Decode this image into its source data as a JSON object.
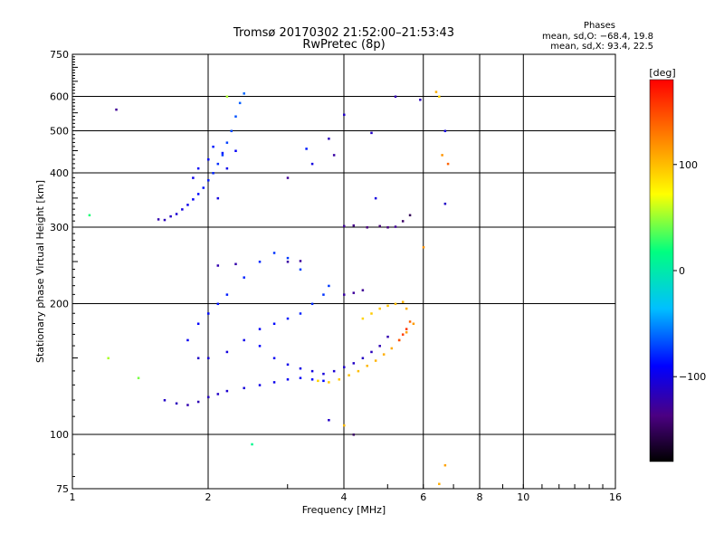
{
  "header": {
    "title_line1": "Tromsø 20170302 21:52:00–21:53:43",
    "title_line2": "RwPretec (8p)",
    "info_title": "Phases",
    "info_line1": "mean, sd,O: −68.4, 19.8",
    "info_line2": "mean, sd,X:  93.4, 22.5"
  },
  "chart_data": {
    "type": "scatter",
    "xlabel": "Frequency [MHz]",
    "ylabel": "Stationary phase Virtual Height [km]",
    "x_scale": "log",
    "y_scale": "log",
    "xlim": [
      1,
      16
    ],
    "ylim": [
      75,
      750
    ],
    "x_ticks": [
      1,
      2,
      4,
      6,
      8,
      10,
      16
    ],
    "x_tick_labels": [
      "1",
      "2",
      "4",
      "6",
      "8",
      "10",
      "16"
    ],
    "y_ticks": [
      75,
      100,
      200,
      300,
      400,
      500,
      600,
      750
    ],
    "y_tick_labels": [
      "75",
      "100",
      "200",
      "300",
      "400",
      "500",
      "600",
      "750"
    ],
    "grid": true,
    "colorbar": {
      "label": "[deg]",
      "range": [
        -180,
        180
      ],
      "ticks": [
        100,
        0,
        -100
      ],
      "tick_labels": [
        "100",
        "0",
        "−100"
      ],
      "colors": [
        "#000000",
        "#4b0082",
        "#0000ff",
        "#00bfff",
        "#00ff80",
        "#ffff00",
        "#ff8000",
        "#ff0000"
      ]
    },
    "series": [
      {
        "values": [
          [
            1.55,
            313,
            -110
          ],
          [
            1.6,
            312,
            -105
          ],
          [
            1.65,
            318,
            -100
          ],
          [
            1.7,
            322,
            -95
          ],
          [
            1.75,
            330,
            -90
          ],
          [
            1.8,
            338,
            -85
          ],
          [
            1.85,
            348,
            -80
          ],
          [
            1.9,
            358,
            -75
          ],
          [
            1.95,
            370,
            -72
          ],
          [
            2.0,
            385,
            -70
          ],
          [
            2.05,
            400,
            -68
          ],
          [
            2.1,
            420,
            -65
          ],
          [
            2.15,
            440,
            -62
          ],
          [
            2.2,
            470,
            -60
          ],
          [
            2.25,
            500,
            -58
          ],
          [
            2.3,
            540,
            -55
          ],
          [
            2.35,
            580,
            -52
          ],
          [
            2.4,
            610,
            -50
          ],
          [
            1.85,
            390,
            -85
          ],
          [
            1.9,
            410,
            -80
          ],
          [
            2.0,
            430,
            -75
          ],
          [
            2.05,
            460,
            -70
          ],
          [
            2.1,
            350,
            -90
          ],
          [
            2.2,
            410,
            -85
          ],
          [
            2.3,
            450,
            -80
          ],
          [
            1.6,
            120,
            -100
          ],
          [
            1.7,
            118,
            -105
          ],
          [
            1.8,
            117,
            -110
          ],
          [
            1.9,
            119,
            -108
          ],
          [
            2.0,
            122,
            -104
          ],
          [
            2.1,
            124,
            -100
          ],
          [
            2.2,
            126,
            -96
          ],
          [
            2.4,
            128,
            -92
          ],
          [
            2.6,
            130,
            -88
          ],
          [
            2.8,
            132,
            -85
          ],
          [
            3.0,
            134,
            -82
          ],
          [
            3.2,
            135,
            -80
          ],
          [
            3.4,
            134,
            -78
          ],
          [
            3.6,
            133,
            -76
          ],
          [
            2.0,
            150,
            -95
          ],
          [
            2.2,
            155,
            -90
          ],
          [
            2.4,
            165,
            -85
          ],
          [
            2.6,
            175,
            -80
          ],
          [
            2.8,
            180,
            -75
          ],
          [
            3.0,
            185,
            -70
          ],
          [
            3.2,
            190,
            -68
          ],
          [
            3.4,
            200,
            -66
          ],
          [
            3.6,
            210,
            -64
          ],
          [
            3.7,
            220,
            -62
          ],
          [
            2.6,
            160,
            -78
          ],
          [
            2.8,
            150,
            -82
          ],
          [
            3.0,
            145,
            -85
          ],
          [
            3.2,
            142,
            -88
          ],
          [
            3.4,
            140,
            -90
          ],
          [
            3.6,
            138,
            -92
          ],
          [
            3.8,
            140,
            -95
          ],
          [
            4.0,
            143,
            -98
          ],
          [
            4.2,
            146,
            -100
          ],
          [
            4.4,
            150,
            -102
          ],
          [
            4.6,
            155,
            -105
          ],
          [
            4.8,
            160,
            -108
          ],
          [
            5.0,
            168,
            -110
          ],
          [
            1.8,
            165,
            -82
          ],
          [
            1.9,
            180,
            -78
          ],
          [
            2.0,
            190,
            -74
          ],
          [
            2.1,
            200,
            -72
          ],
          [
            2.2,
            210,
            -70
          ],
          [
            2.4,
            230,
            -68
          ],
          [
            2.6,
            250,
            -66
          ],
          [
            2.8,
            262,
            -64
          ],
          [
            3.0,
            255,
            -62
          ],
          [
            3.2,
            240,
            -60
          ],
          [
            2.1,
            245,
            -110
          ],
          [
            2.3,
            247,
            -112
          ],
          [
            3.0,
            250,
            -115
          ],
          [
            3.2,
            251,
            -118
          ],
          [
            3.5,
            133,
            95
          ],
          [
            3.7,
            132,
            98
          ],
          [
            3.9,
            134,
            100
          ],
          [
            4.1,
            137,
            102
          ],
          [
            4.3,
            140,
            104
          ],
          [
            4.5,
            144,
            106
          ],
          [
            4.7,
            148,
            108
          ],
          [
            4.9,
            153,
            110
          ],
          [
            5.1,
            158,
            112
          ],
          [
            5.3,
            165,
            114
          ],
          [
            5.5,
            172,
            116
          ],
          [
            5.7,
            180,
            118
          ],
          [
            4.4,
            185,
            95
          ],
          [
            4.6,
            190,
            98
          ],
          [
            4.8,
            195,
            100
          ],
          [
            5.0,
            198,
            102
          ],
          [
            5.2,
            200,
            105
          ],
          [
            5.4,
            202,
            108
          ],
          [
            5.5,
            195,
            110
          ],
          [
            4.0,
            302,
            -120
          ],
          [
            4.2,
            303,
            -125
          ],
          [
            4.5,
            300,
            -130
          ],
          [
            4.8,
            302,
            -135
          ],
          [
            5.0,
            300,
            -128
          ],
          [
            5.2,
            301,
            -120
          ],
          [
            5.4,
            310,
            -140
          ],
          [
            5.6,
            320,
            -145
          ],
          [
            5.3,
            165,
            150
          ],
          [
            5.4,
            170,
            155
          ],
          [
            5.5,
            175,
            160
          ],
          [
            5.6,
            182,
            140
          ],
          [
            4.0,
            210,
            -115
          ],
          [
            4.2,
            212,
            -118
          ],
          [
            4.4,
            215,
            -120
          ],
          [
            1.25,
            560,
            -120
          ],
          [
            1.09,
            320,
            30
          ],
          [
            1.9,
            150,
            -100
          ],
          [
            2.15,
            445,
            -70
          ],
          [
            2.2,
            600,
            60
          ],
          [
            2.5,
            95,
            20
          ],
          [
            3.3,
            455,
            -70
          ],
          [
            3.0,
            390,
            -120
          ],
          [
            3.4,
            420,
            -90
          ],
          [
            3.7,
            480,
            -105
          ],
          [
            3.8,
            440,
            -115
          ],
          [
            4.0,
            545,
            -100
          ],
          [
            4.6,
            495,
            -100
          ],
          [
            4.7,
            350,
            -90
          ],
          [
            5.2,
            600,
            -110
          ],
          [
            5.9,
            590,
            -105
          ],
          [
            6.4,
            615,
            110
          ],
          [
            6.5,
            600,
            95
          ],
          [
            6.7,
            500,
            -90
          ],
          [
            6.7,
            340,
            -100
          ],
          [
            6.6,
            440,
            120
          ],
          [
            6.8,
            420,
            140
          ],
          [
            6.7,
            85,
            115
          ],
          [
            6.5,
            77,
            110
          ],
          [
            4.2,
            100,
            -140
          ],
          [
            4.0,
            105,
            105
          ],
          [
            3.7,
            108,
            -100
          ],
          [
            6.0,
            270,
            120
          ],
          [
            1.2,
            150,
            60
          ],
          [
            1.4,
            135,
            50
          ]
        ]
      }
    ]
  }
}
